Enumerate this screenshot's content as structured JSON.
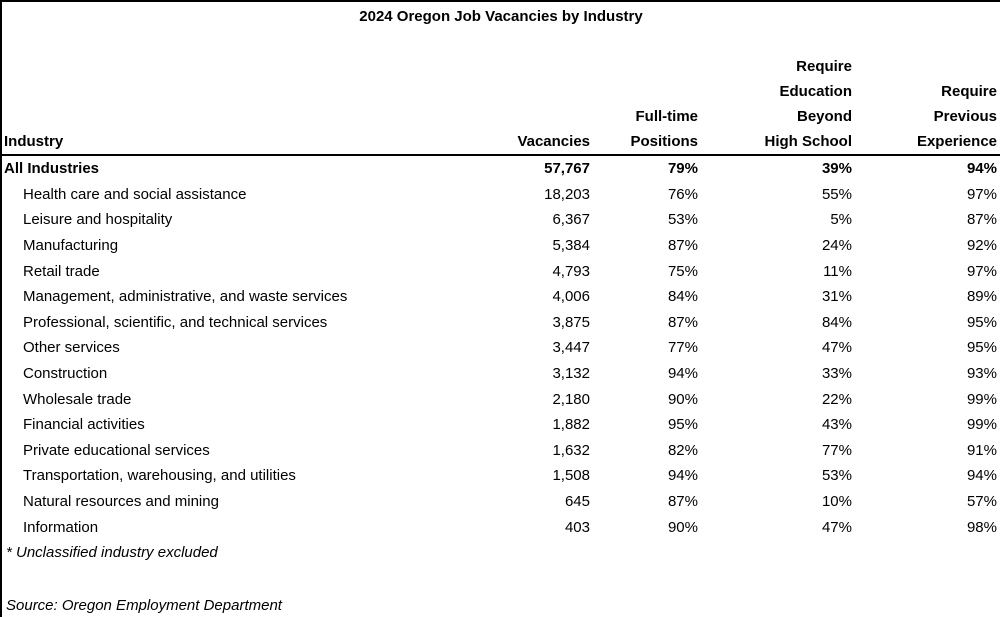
{
  "title": "2024 Oregon Job Vacancies by Industry",
  "columns": [
    {
      "id": "industry",
      "label": "Industry"
    },
    {
      "id": "vacancies",
      "label": "Vacancies"
    },
    {
      "id": "full_time",
      "label": "Full-time\nPositions"
    },
    {
      "id": "education",
      "label": "Require\nEducation\nBeyond\nHigh School"
    },
    {
      "id": "experience",
      "label": "Require\nPrevious\nExperience"
    }
  ],
  "rows": [
    {
      "industry": "All Industries",
      "vacancies": "57,767",
      "full_time": "79%",
      "education": "39%",
      "experience": "94%",
      "is_total": true
    },
    {
      "industry": "Health care and social assistance",
      "vacancies": "18,203",
      "full_time": "76%",
      "education": "55%",
      "experience": "97%",
      "is_total": false
    },
    {
      "industry": "Leisure and hospitality",
      "vacancies": "6,367",
      "full_time": "53%",
      "education": "5%",
      "experience": "87%",
      "is_total": false
    },
    {
      "industry": "Manufacturing",
      "vacancies": "5,384",
      "full_time": "87%",
      "education": "24%",
      "experience": "92%",
      "is_total": false
    },
    {
      "industry": "Retail trade",
      "vacancies": "4,793",
      "full_time": "75%",
      "education": "11%",
      "experience": "97%",
      "is_total": false
    },
    {
      "industry": "Management, administrative, and waste services",
      "vacancies": "4,006",
      "full_time": "84%",
      "education": "31%",
      "experience": "89%",
      "is_total": false
    },
    {
      "industry": "Professional, scientific, and technical services",
      "vacancies": "3,875",
      "full_time": "87%",
      "education": "84%",
      "experience": "95%",
      "is_total": false
    },
    {
      "industry": "Other services",
      "vacancies": "3,447",
      "full_time": "77%",
      "education": "47%",
      "experience": "95%",
      "is_total": false
    },
    {
      "industry": "Construction",
      "vacancies": "3,132",
      "full_time": "94%",
      "education": "33%",
      "experience": "93%",
      "is_total": false
    },
    {
      "industry": "Wholesale trade",
      "vacancies": "2,180",
      "full_time": "90%",
      "education": "22%",
      "experience": "99%",
      "is_total": false
    },
    {
      "industry": "Financial activities",
      "vacancies": "1,882",
      "full_time": "95%",
      "education": "43%",
      "experience": "99%",
      "is_total": false
    },
    {
      "industry": "Private educational services",
      "vacancies": "1,632",
      "full_time": "82%",
      "education": "77%",
      "experience": "91%",
      "is_total": false
    },
    {
      "industry": "Transportation, warehousing, and utilities",
      "vacancies": "1,508",
      "full_time": "94%",
      "education": "53%",
      "experience": "94%",
      "is_total": false
    },
    {
      "industry": "Natural resources and mining",
      "vacancies": "645",
      "full_time": "87%",
      "education": "10%",
      "experience": "57%",
      "is_total": false
    },
    {
      "industry": "Information",
      "vacancies": "403",
      "full_time": "90%",
      "education": "47%",
      "experience": "98%",
      "is_total": false
    }
  ],
  "footnote": "* Unclassified industry excluded",
  "source": "Source: Oregon Employment Department",
  "colors": {
    "text": "#000000",
    "background": "#ffffff",
    "border": "#000000"
  },
  "chart_data": {
    "type": "table",
    "title": "2024 Oregon Job Vacancies by Industry",
    "columns": [
      "Industry",
      "Vacancies",
      "Full-time Positions",
      "Require Education Beyond High School",
      "Require Previous Experience"
    ],
    "rows": [
      [
        "All Industries",
        57767,
        "79%",
        "39%",
        "94%"
      ],
      [
        "Health care and social assistance",
        18203,
        "76%",
        "55%",
        "97%"
      ],
      [
        "Leisure and hospitality",
        6367,
        "53%",
        "5%",
        "87%"
      ],
      [
        "Manufacturing",
        5384,
        "87%",
        "24%",
        "92%"
      ],
      [
        "Retail trade",
        4793,
        "75%",
        "11%",
        "97%"
      ],
      [
        "Management, administrative, and waste services",
        4006,
        "84%",
        "31%",
        "89%"
      ],
      [
        "Professional, scientific, and technical services",
        3875,
        "87%",
        "84%",
        "95%"
      ],
      [
        "Other services",
        3447,
        "77%",
        "47%",
        "95%"
      ],
      [
        "Construction",
        3132,
        "94%",
        "33%",
        "93%"
      ],
      [
        "Wholesale trade",
        2180,
        "90%",
        "22%",
        "99%"
      ],
      [
        "Financial activities",
        1882,
        "95%",
        "43%",
        "99%"
      ],
      [
        "Private educational services",
        1632,
        "82%",
        "77%",
        "91%"
      ],
      [
        "Transportation, warehousing, and utilities",
        1508,
        "94%",
        "53%",
        "94%"
      ],
      [
        "Natural resources and mining",
        645,
        "87%",
        "10%",
        "57%"
      ],
      [
        "Information",
        403,
        "90%",
        "47%",
        "98%"
      ]
    ],
    "footnote": "* Unclassified industry excluded",
    "source": "Source: Oregon Employment Department"
  }
}
